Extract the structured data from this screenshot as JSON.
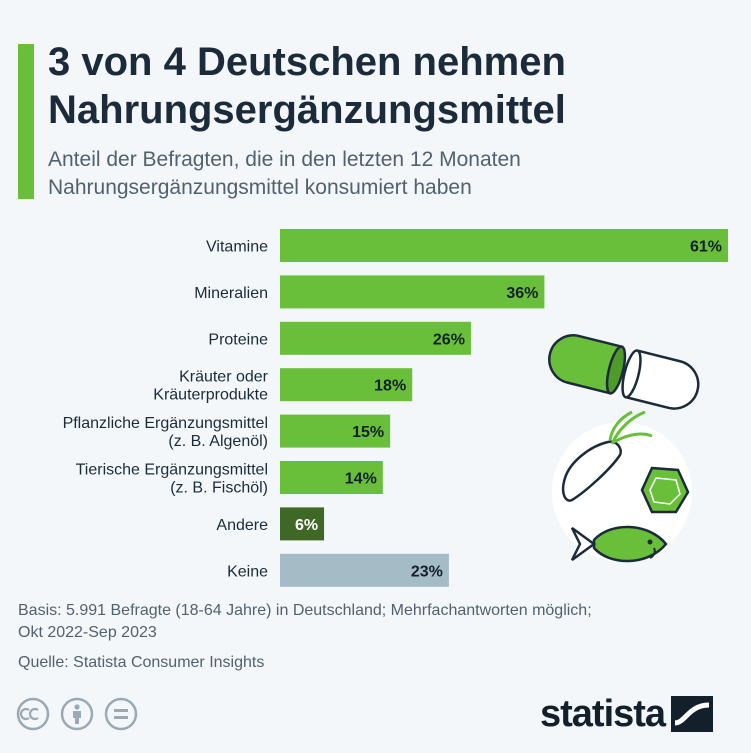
{
  "title": "3 von 4 Deutschen nehmen Nahrungsergänzungsmittel",
  "subtitle": "Anteil der Befragten, die in den letzten 12 Monaten Nahrungsergänzungsmittel konsumiert haben",
  "footer": {
    "basis_line1": "Basis: 5.991 Befragte (18-64 Jahre) in Deutschland; Mehrfachantworten möglich;",
    "basis_line2": "Okt 2022-Sep 2023",
    "source": "Quelle: Statista Consumer Insights"
  },
  "logo": {
    "text": "statista"
  },
  "license_icons": [
    "cc-icon",
    "by-icon",
    "nd-icon"
  ],
  "colors": {
    "primary": "#6abf3a",
    "other": "#3f6826",
    "none": "#a5bcc6",
    "title_bar": "#6abf3a",
    "illustration_dark": "#1c2b3a"
  },
  "chart_data": {
    "type": "bar",
    "orientation": "horizontal",
    "unit": "%",
    "xlim": [
      0,
      61
    ],
    "categories": [
      [
        "Vitamine"
      ],
      [
        "Mineralien"
      ],
      [
        "Proteine"
      ],
      [
        "Kräuter oder",
        "Kräuterprodukte"
      ],
      [
        "Pflanzliche Ergänzungsmittel",
        "(z. B. Algenöl)"
      ],
      [
        "Tierische Ergänzungsmittel",
        "(z. B. Fischöl)"
      ],
      [
        "Andere"
      ],
      [
        "Keine"
      ]
    ],
    "values": [
      61,
      36,
      26,
      18,
      15,
      14,
      6,
      23
    ],
    "value_labels": [
      "61%",
      "36%",
      "26%",
      "18%",
      "15%",
      "14%",
      "6%",
      "23%"
    ],
    "bar_colors": [
      "#6abf3a",
      "#6abf3a",
      "#6abf3a",
      "#6abf3a",
      "#6abf3a",
      "#6abf3a",
      "#3f6826",
      "#a5bcc6"
    ],
    "label_light": [
      false,
      false,
      false,
      false,
      false,
      false,
      true,
      false
    ],
    "grid": false,
    "legend": "none"
  }
}
